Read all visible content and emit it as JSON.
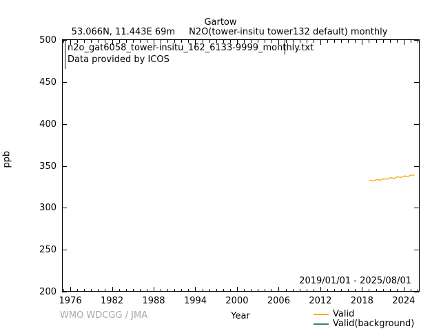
{
  "title": "Gartow",
  "subtitle": {
    "location": "53.066N, 11.443E 69m",
    "dataset": "N2O(tower-insitu tower132 default) monthly"
  },
  "annotation_box": {
    "filename": "n2o_gat6058_tower-insitu_162_6133-9999_monthly.txt",
    "provider": "Data provided by ICOS"
  },
  "date_range": "2019/01/01 - 2025/08/01",
  "watermark": "WMO WDCGG / JMA",
  "watermark_color": "#a8a8a8",
  "legend": {
    "entries": [
      {
        "label": "Valid",
        "color": "#ffa500"
      },
      {
        "label": "Valid(background)",
        "color": "#2e8b57"
      }
    ]
  },
  "chart_data": {
    "type": "line",
    "title": "Gartow",
    "xlabel": "Year",
    "ylabel": "ppb",
    "xlim": [
      1974.8,
      2026.2
    ],
    "ylim": [
      200,
      500
    ],
    "xticks_major": [
      1976,
      1982,
      1988,
      1994,
      2000,
      2006,
      2012,
      2018,
      2024
    ],
    "xtick_minor_step": 1,
    "yticks_major": [
      200,
      250,
      300,
      350,
      400,
      450,
      500
    ],
    "grid": false,
    "legend_position": "bottom-right-below-axis",
    "series": [
      {
        "name": "Valid",
        "color": "#ffa500",
        "x_start": 2019.0417,
        "x_step": 0.08333,
        "values": [
          332.6,
          332.7,
          332.7,
          332.5,
          332.3,
          332.1,
          332.0,
          332.1,
          332.3,
          332.6,
          332.8,
          333.0,
          333.5,
          333.6,
          333.6,
          333.4,
          333.2,
          333.0,
          332.9,
          333.0,
          333.3,
          333.6,
          333.8,
          334.0,
          334.6,
          334.7,
          334.7,
          334.5,
          334.3,
          334.1,
          334.0,
          334.1,
          334.4,
          334.7,
          334.9,
          335.1,
          335.7,
          335.8,
          335.8,
          335.6,
          335.4,
          335.2,
          335.1,
          335.2,
          335.5,
          335.8,
          336.0,
          336.2,
          336.8,
          336.9,
          336.9,
          336.7,
          336.5,
          336.3,
          336.2,
          336.3,
          336.6,
          336.9,
          337.1,
          337.3,
          337.8,
          337.9,
          337.9,
          337.7,
          337.5,
          337.4,
          337.3,
          337.4,
          337.7,
          338.0,
          338.2,
          338.4,
          338.9,
          339.0,
          339.0,
          338.8,
          338.7,
          338.8,
          339.0
        ]
      },
      {
        "name": "Valid(background)",
        "color": "#2e8b57",
        "x_start": null,
        "x_step": null,
        "values": []
      }
    ]
  }
}
